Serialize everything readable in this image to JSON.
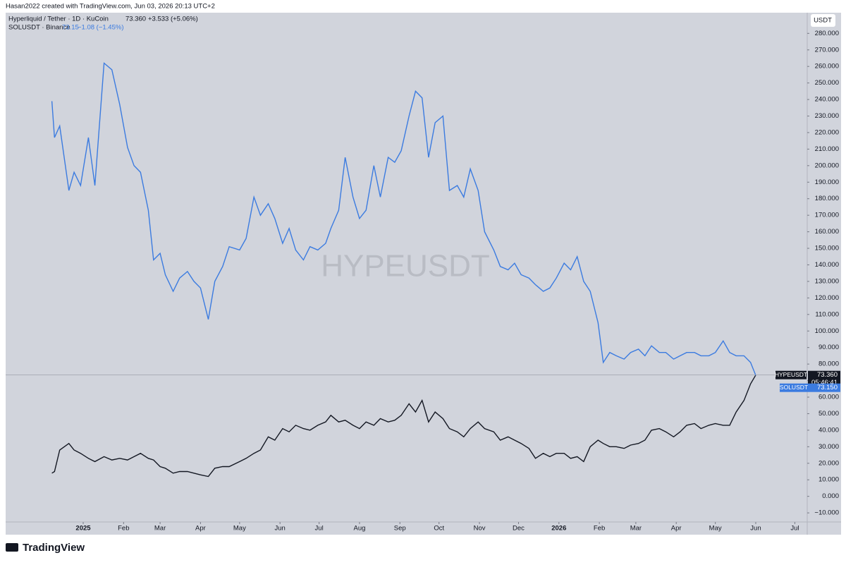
{
  "header": "Hasan2022 created with TradingView.com, Jun 03, 2026 20:13 UTC+2",
  "footer": "TradingView",
  "chart_data": {
    "type": "line",
    "watermark": "HYPEUSDT",
    "unit": "USDT",
    "legend": [
      {
        "name": "Hyperliquid / Tether · 1D · KuCoin",
        "last": "73.360",
        "change": "+3.533 (+5.06%)"
      },
      {
        "name": "SOLUSDT · Binance",
        "last": "73.15",
        "change": "−1.08 (−1.45%)"
      }
    ],
    "price_tags": [
      {
        "name": "HYPEUSDT",
        "label": "73.360",
        "countdown": "05:46:41"
      },
      {
        "name": "SOLUSDT",
        "label": "73.150"
      }
    ],
    "x": [
      -24,
      -22,
      -18,
      -11,
      -7,
      -2,
      4,
      9,
      16,
      22,
      28,
      34,
      39,
      44,
      50,
      54,
      59,
      63,
      69,
      74,
      80,
      85,
      90,
      96,
      101,
      107,
      112,
      120,
      125,
      131,
      136,
      142,
      147,
      153,
      158,
      163,
      169,
      174,
      180,
      186,
      190,
      196,
      201,
      207,
      212,
      217,
      223,
      228,
      234,
      239,
      244,
      250,
      255,
      260,
      265,
      270,
      276,
      281,
      287,
      292,
      297,
      303,
      308,
      315,
      320,
      326,
      331,
      336,
      342,
      347,
      353,
      358,
      363,
      369,
      374,
      379,
      384,
      389,
      395,
      399,
      404,
      409,
      415,
      420,
      426,
      431,
      436,
      442,
      447,
      453,
      458,
      463,
      469,
      474,
      480,
      485,
      491,
      496,
      501,
      507,
      512,
      516
    ],
    "series": [
      {
        "name": "HYPEUSDT",
        "color": "#131722",
        "values": [
          14,
          15,
          28,
          32,
          28,
          26,
          23,
          21,
          24,
          22,
          23,
          22,
          24,
          26,
          23,
          22,
          18,
          17,
          14,
          15,
          15,
          14,
          13,
          12,
          17,
          18,
          18,
          21,
          23,
          26,
          28,
          36,
          34,
          41,
          39,
          43,
          41,
          40,
          43,
          45,
          49,
          45,
          46,
          43,
          41,
          45,
          43,
          47,
          45,
          46,
          49,
          56,
          51,
          58,
          45,
          51,
          47,
          41,
          39,
          36,
          41,
          45,
          41,
          39,
          34,
          36,
          34,
          32,
          29,
          23,
          26,
          24,
          26,
          26,
          23,
          24,
          21,
          30,
          34,
          32,
          30,
          30,
          29,
          31,
          32,
          34,
          40,
          41,
          39,
          36,
          39,
          43,
          44,
          41,
          43,
          44,
          43,
          43,
          51,
          58,
          68,
          73.36
        ]
      },
      {
        "name": "SOLUSDT",
        "color": "#3b7be0",
        "values": [
          239,
          217,
          224,
          185,
          196,
          188,
          217,
          188,
          262,
          258,
          237,
          211,
          200,
          196,
          173,
          143,
          147,
          134,
          124,
          132,
          136,
          130,
          126,
          107,
          130,
          139,
          151,
          149,
          156,
          181,
          170,
          177,
          168,
          153,
          162,
          149,
          143,
          151,
          149,
          153,
          162,
          173,
          205,
          181,
          168,
          173,
          200,
          181,
          205,
          202,
          209,
          230,
          245,
          241,
          205,
          226,
          230,
          185,
          188,
          181,
          198,
          185,
          160,
          149,
          139,
          137,
          141,
          134,
          132,
          128,
          124,
          126,
          132,
          141,
          137,
          145,
          130,
          124,
          105,
          81,
          87,
          85,
          83,
          87,
          89,
          85,
          91,
          87,
          87,
          83,
          85,
          87,
          87,
          85,
          85,
          87,
          94,
          87,
          85,
          85,
          81,
          73.15
        ]
      }
    ],
    "xlim": [
      -59.5,
      555.5
    ],
    "xticks": [
      {
        "value": 0,
        "label": "2025"
      },
      {
        "value": 31,
        "label": "Feb"
      },
      {
        "value": 59,
        "label": "Mar"
      },
      {
        "value": 90,
        "label": "Apr"
      },
      {
        "value": 120,
        "label": "May"
      },
      {
        "value": 151,
        "label": "Jun"
      },
      {
        "value": 181,
        "label": "Jul"
      },
      {
        "value": 212,
        "label": "Aug"
      },
      {
        "value": 243,
        "label": "Sep"
      },
      {
        "value": 273,
        "label": "Oct"
      },
      {
        "value": 304,
        "label": "Nov"
      },
      {
        "value": 334,
        "label": "Dec"
      },
      {
        "value": 365,
        "label": "2026"
      },
      {
        "value": 396,
        "label": "Feb"
      },
      {
        "value": 424,
        "label": "Mar"
      },
      {
        "value": 455,
        "label": "Apr"
      },
      {
        "value": 485,
        "label": "May"
      },
      {
        "value": 516,
        "label": "Jun"
      },
      {
        "value": 546,
        "label": "Jul"
      }
    ],
    "ylim": [
      -15.5,
      292.5
    ],
    "yticks": [
      {
        "value": 280,
        "label": "280.000"
      },
      {
        "value": 270,
        "label": "270.000"
      },
      {
        "value": 260,
        "label": "260.000"
      },
      {
        "value": 250,
        "label": "250.000"
      },
      {
        "value": 240,
        "label": "240.000"
      },
      {
        "value": 230,
        "label": "230.000"
      },
      {
        "value": 220,
        "label": "220.000"
      },
      {
        "value": 210,
        "label": "210.000"
      },
      {
        "value": 200,
        "label": "200.000"
      },
      {
        "value": 190,
        "label": "190.000"
      },
      {
        "value": 180,
        "label": "180.000"
      },
      {
        "value": 170,
        "label": "170.000"
      },
      {
        "value": 160,
        "label": "160.000"
      },
      {
        "value": 150,
        "label": "150.000"
      },
      {
        "value": 140,
        "label": "140.000"
      },
      {
        "value": 130,
        "label": "130.000"
      },
      {
        "value": 120,
        "label": "120.000"
      },
      {
        "value": 110,
        "label": "110.000"
      },
      {
        "value": 100,
        "label": "100.000"
      },
      {
        "value": 90,
        "label": "90.000"
      },
      {
        "value": 80,
        "label": "80.000"
      },
      {
        "value": 70,
        "label": "70.000"
      },
      {
        "value": 60,
        "label": "60.000"
      },
      {
        "value": 50,
        "label": "50.000"
      },
      {
        "value": 40,
        "label": "40.000"
      },
      {
        "value": 30,
        "label": "30.000"
      },
      {
        "value": 20,
        "label": "20.000"
      },
      {
        "value": 10,
        "label": "10.000"
      },
      {
        "value": 0,
        "label": "0.000"
      },
      {
        "value": -10,
        "label": "−10.000"
      }
    ],
    "grid": false
  }
}
